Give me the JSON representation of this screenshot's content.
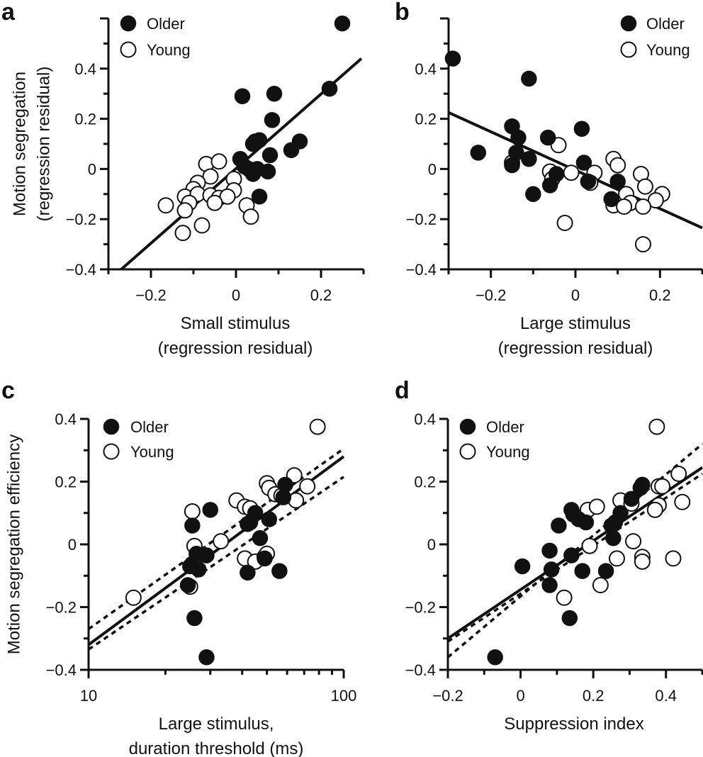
{
  "chart_data": [
    {
      "type": "scatter",
      "panel_label": "a",
      "xscale": "linear",
      "xlim": [
        -0.3,
        0.3
      ],
      "ylim": [
        -0.4,
        0.6
      ],
      "xticks": [
        -0.2,
        0,
        0.2
      ],
      "xtick_labels": [
        "−0.2",
        "0",
        "0.2"
      ],
      "yticks": [
        -0.4,
        -0.2,
        0,
        0.2,
        0.4
      ],
      "ytick_labels": [
        "−0.4",
        "−0.2",
        "0",
        "0.2",
        "0.4"
      ],
      "xlabel": [
        "Small stimulus",
        "(regression residual)"
      ],
      "ylabel": [
        "Motion segregation",
        "(regression residual)"
      ],
      "legend": {
        "position": "top-left",
        "entries": [
          {
            "name": "Older",
            "marker": "filled"
          },
          {
            "name": "Young",
            "marker": "open"
          }
        ]
      },
      "series": [
        {
          "name": "Older",
          "marker": "filled",
          "points": [
            [
              0.25,
              0.58
            ],
            [
              0.22,
              0.32
            ],
            [
              0.015,
              0.29
            ],
            [
              0.09,
              0.3
            ],
            [
              0.085,
              0.195
            ],
            [
              0.045,
              0.11
            ],
            [
              0.055,
              0.115
            ],
            [
              0.04,
              0.1
            ],
            [
              0.15,
              0.11
            ],
            [
              0.13,
              0.075
            ],
            [
              0.08,
              0.055
            ],
            [
              0.01,
              0.04
            ],
            [
              0.02,
              0.01
            ],
            [
              0.03,
              0.0
            ],
            [
              0.05,
              0.0
            ],
            [
              0.075,
              -0.01
            ],
            [
              0.04,
              -0.02
            ],
            [
              0.055,
              -0.11
            ]
          ]
        },
        {
          "name": "Young",
          "marker": "open",
          "points": [
            [
              -0.07,
              0.02
            ],
            [
              -0.04,
              0.03
            ],
            [
              -0.06,
              -0.03
            ],
            [
              -0.005,
              -0.04
            ],
            [
              -0.09,
              -0.055
            ],
            [
              -0.1,
              -0.08
            ],
            [
              -0.12,
              -0.11
            ],
            [
              -0.09,
              -0.1
            ],
            [
              -0.005,
              -0.085
            ],
            [
              -0.06,
              -0.105
            ],
            [
              -0.04,
              -0.115
            ],
            [
              -0.02,
              -0.11
            ],
            [
              -0.11,
              -0.135
            ],
            [
              -0.05,
              -0.135
            ],
            [
              -0.165,
              -0.145
            ],
            [
              -0.12,
              -0.165
            ],
            [
              0.025,
              -0.145
            ],
            [
              0.035,
              -0.19
            ],
            [
              -0.08,
              -0.225
            ],
            [
              -0.125,
              -0.255
            ]
          ]
        }
      ],
      "lines": [
        {
          "style": "solid",
          "x": [
            -0.27,
            0.295
          ],
          "y": [
            -0.4,
            0.44
          ]
        }
      ]
    },
    {
      "type": "scatter",
      "panel_label": "b",
      "xscale": "linear",
      "xlim": [
        -0.3,
        0.3
      ],
      "ylim": [
        -0.4,
        0.6
      ],
      "xticks": [
        -0.2,
        0,
        0.2
      ],
      "xtick_labels": [
        "−0.2",
        "0",
        "0.2"
      ],
      "yticks": [
        -0.4,
        -0.2,
        0,
        0.2,
        0.4
      ],
      "ytick_labels": [
        "−0.4",
        "−0.2",
        "0",
        "0.2",
        "0.4"
      ],
      "xlabel": [
        "Large stimulus",
        "(regression residual)"
      ],
      "ylabel": [],
      "legend": {
        "position": "top-right",
        "entries": [
          {
            "name": "Older",
            "marker": "filled"
          },
          {
            "name": "Young",
            "marker": "open"
          }
        ]
      },
      "series": [
        {
          "name": "Older",
          "marker": "filled",
          "points": [
            [
              -0.29,
              0.44
            ],
            [
              -0.11,
              0.36
            ],
            [
              -0.15,
              0.17
            ],
            [
              0.015,
              0.16
            ],
            [
              -0.065,
              0.125
            ],
            [
              -0.135,
              0.125
            ],
            [
              -0.14,
              0.065
            ],
            [
              -0.23,
              0.065
            ],
            [
              -0.11,
              0.04
            ],
            [
              0.02,
              0.025
            ],
            [
              -0.15,
              0.015
            ],
            [
              -0.045,
              -0.02
            ],
            [
              0.1,
              -0.05
            ],
            [
              0.03,
              -0.05
            ],
            [
              -0.06,
              -0.065
            ],
            [
              -0.1,
              -0.1
            ],
            [
              0.085,
              -0.12
            ]
          ]
        },
        {
          "name": "Young",
          "marker": "open",
          "points": [
            [
              -0.04,
              0.095
            ],
            [
              0.09,
              0.04
            ],
            [
              0.1,
              0.015
            ],
            [
              -0.15,
              0.025
            ],
            [
              -0.06,
              -0.01
            ],
            [
              -0.01,
              -0.015
            ],
            [
              0.045,
              -0.015
            ],
            [
              -0.055,
              -0.04
            ],
            [
              0.155,
              -0.02
            ],
            [
              0.035,
              -0.055
            ],
            [
              0.165,
              -0.07
            ],
            [
              0.12,
              -0.1
            ],
            [
              0.205,
              -0.1
            ],
            [
              0.19,
              -0.125
            ],
            [
              0.13,
              -0.135
            ],
            [
              0.09,
              -0.145
            ],
            [
              0.115,
              -0.15
            ],
            [
              0.16,
              -0.15
            ],
            [
              -0.025,
              -0.215
            ],
            [
              0.16,
              -0.3
            ]
          ]
        }
      ],
      "lines": [
        {
          "style": "solid",
          "x": [
            -0.3,
            0.3
          ],
          "y": [
            0.225,
            -0.235
          ]
        }
      ]
    },
    {
      "type": "scatter",
      "panel_label": "c",
      "xscale": "log",
      "xlim": [
        10,
        100
      ],
      "ylim": [
        -0.4,
        0.4
      ],
      "xticks": [
        10,
        100
      ],
      "xtick_labels": [
        "10",
        "100"
      ],
      "x_minor_ticks": [
        20,
        30,
        40,
        50,
        60,
        70,
        80,
        90
      ],
      "yticks": [
        -0.4,
        -0.2,
        0,
        0.2,
        0.4
      ],
      "ytick_labels": [
        "−0.4",
        "−0.2",
        "0",
        "0.2",
        "0.4"
      ],
      "xlabel": [
        "Large stimulus,",
        "duration threshold (ms)"
      ],
      "ylabel": [
        "Motion segregation efficiency"
      ],
      "legend": {
        "position": "top-left",
        "entries": [
          {
            "name": "Older",
            "marker": "filled"
          },
          {
            "name": "Young",
            "marker": "open"
          }
        ]
      },
      "series": [
        {
          "name": "Older",
          "marker": "filled",
          "points": [
            [
              30,
              0.11
            ],
            [
              59,
              0.19
            ],
            [
              25.5,
              0.06
            ],
            [
              58,
              0.15
            ],
            [
              45,
              0.1
            ],
            [
              43,
              0.07
            ],
            [
              42,
              0.065
            ],
            [
              51,
              0.08
            ],
            [
              47,
              0.02
            ],
            [
              26.5,
              -0.03
            ],
            [
              29,
              -0.035
            ],
            [
              49,
              -0.045
            ],
            [
              25,
              -0.07
            ],
            [
              27,
              -0.08
            ],
            [
              42,
              -0.09
            ],
            [
              56,
              -0.085
            ],
            [
              24.5,
              -0.13
            ],
            [
              26,
              -0.235
            ],
            [
              29,
              -0.36
            ]
          ]
        },
        {
          "name": "Young",
          "marker": "open",
          "points": [
            [
              79,
              0.375
            ],
            [
              64,
              0.22
            ],
            [
              72,
              0.185
            ],
            [
              50,
              0.195
            ],
            [
              51,
              0.18
            ],
            [
              54,
              0.16
            ],
            [
              38,
              0.14
            ],
            [
              41,
              0.12
            ],
            [
              43,
              0.115
            ],
            [
              57,
              0.155
            ],
            [
              65,
              0.14
            ],
            [
              25.5,
              0.105
            ],
            [
              26,
              -0.005
            ],
            [
              33,
              0.01
            ],
            [
              41,
              -0.045
            ],
            [
              45,
              -0.055
            ],
            [
              49,
              -0.04
            ],
            [
              50,
              -0.03
            ],
            [
              15,
              -0.17
            ],
            [
              25,
              -0.135
            ]
          ]
        }
      ],
      "lines": [
        {
          "style": "solid",
          "x": [
            10,
            100
          ],
          "y": [
            -0.32,
            0.28
          ]
        },
        {
          "style": "dashed",
          "x": [
            10,
            100
          ],
          "y": [
            -0.27,
            0.305
          ]
        },
        {
          "style": "dashed",
          "x": [
            10,
            100
          ],
          "y": [
            -0.335,
            0.215
          ]
        }
      ]
    },
    {
      "type": "scatter",
      "panel_label": "d",
      "xscale": "linear",
      "xlim": [
        -0.2,
        0.5
      ],
      "ylim": [
        -0.4,
        0.4
      ],
      "xticks": [
        -0.2,
        0,
        0.2,
        0.4
      ],
      "xtick_labels": [
        "−0.2",
        "0",
        "0.2",
        "0.4"
      ],
      "yticks": [
        -0.4,
        -0.2,
        0,
        0.2,
        0.4
      ],
      "ytick_labels": [
        "−0.4",
        "−0.2",
        "0",
        "0.2",
        "0.4"
      ],
      "xlabel": [
        "Suppression index"
      ],
      "ylabel": [],
      "legend": {
        "position": "top-left",
        "entries": [
          {
            "name": "Older",
            "marker": "filled"
          },
          {
            "name": "Young",
            "marker": "open"
          }
        ]
      },
      "series": [
        {
          "name": "Older",
          "marker": "filled",
          "points": [
            [
              0.335,
              0.19
            ],
            [
              0.33,
              0.18
            ],
            [
              0.305,
              0.145
            ],
            [
              0.14,
              0.11
            ],
            [
              0.16,
              0.08
            ],
            [
              0.145,
              0.095
            ],
            [
              0.275,
              0.1
            ],
            [
              0.26,
              0.07
            ],
            [
              0.18,
              0.07
            ],
            [
              0.25,
              0.06
            ],
            [
              0.105,
              0.06
            ],
            [
              0.255,
              0.02
            ],
            [
              0.08,
              -0.02
            ],
            [
              0.14,
              -0.035
            ],
            [
              0.085,
              -0.08
            ],
            [
              0.17,
              -0.085
            ],
            [
              0.235,
              -0.085
            ],
            [
              0.005,
              -0.07
            ],
            [
              0.08,
              -0.13
            ],
            [
              0.135,
              -0.235
            ],
            [
              -0.07,
              -0.36
            ]
          ]
        },
        {
          "name": "Young",
          "marker": "open",
          "points": [
            [
              0.375,
              0.375
            ],
            [
              0.435,
              0.225
            ],
            [
              0.38,
              0.185
            ],
            [
              0.39,
              0.185
            ],
            [
              0.275,
              0.14
            ],
            [
              0.305,
              0.13
            ],
            [
              0.185,
              0.11
            ],
            [
              0.21,
              0.12
            ],
            [
              0.38,
              0.125
            ],
            [
              0.37,
              0.11
            ],
            [
              0.445,
              0.135
            ],
            [
              0.19,
              -0.005
            ],
            [
              0.31,
              0.01
            ],
            [
              0.265,
              -0.045
            ],
            [
              0.335,
              -0.04
            ],
            [
              0.335,
              -0.055
            ],
            [
              0.42,
              -0.045
            ],
            [
              0.22,
              -0.13
            ],
            [
              0.12,
              -0.17
            ]
          ]
        }
      ],
      "lines": [
        {
          "style": "solid",
          "x": [
            -0.2,
            0.5
          ],
          "y": [
            -0.3,
            0.245
          ]
        },
        {
          "style": "dashed",
          "x": [
            -0.2,
            0.5
          ],
          "y": [
            -0.36,
            0.32
          ]
        },
        {
          "style": "dashed",
          "x": [
            -0.2,
            0.5
          ],
          "y": [
            -0.31,
            0.225
          ]
        }
      ]
    }
  ]
}
